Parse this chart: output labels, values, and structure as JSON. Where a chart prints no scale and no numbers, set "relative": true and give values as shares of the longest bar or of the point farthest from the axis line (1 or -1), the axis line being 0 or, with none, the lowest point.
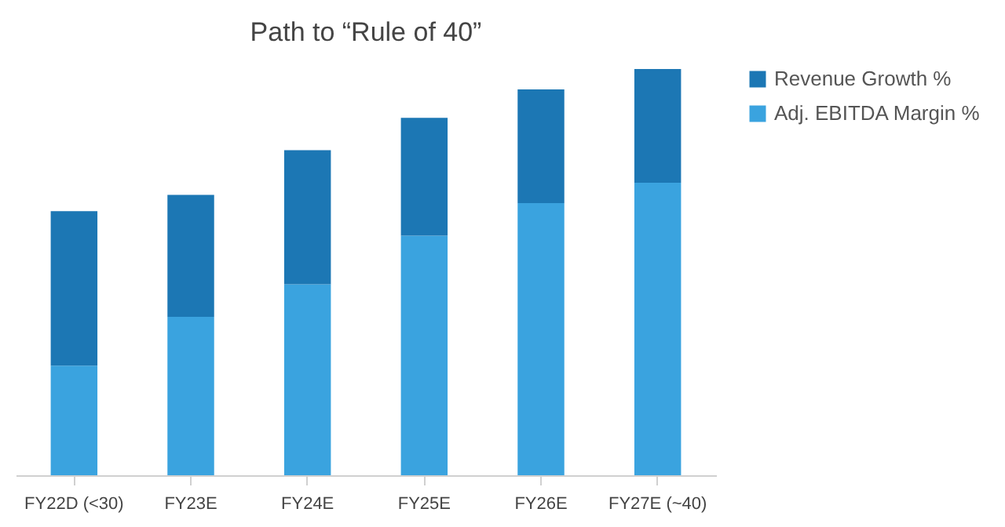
{
  "chart_data": {
    "type": "bar",
    "title": "Path to “Rule of 40”",
    "relative": true,
    "stacked": true,
    "legend": "right",
    "categories": [
      "FY22D (<30)",
      "FY23E",
      "FY24E",
      "FY25E",
      "FY26E",
      "FY27E (~40)"
    ],
    "series": [
      {
        "name": "Adj. EBITDA Margin %",
        "color": "#3aa3df",
        "values": [
          0.27,
          0.39,
          0.47,
          0.59,
          0.67,
          0.72
        ]
      },
      {
        "name": "Revenue Growth %",
        "color": "#1c77b4",
        "values": [
          0.38,
          0.3,
          0.33,
          0.29,
          0.28,
          0.28
        ]
      }
    ]
  }
}
